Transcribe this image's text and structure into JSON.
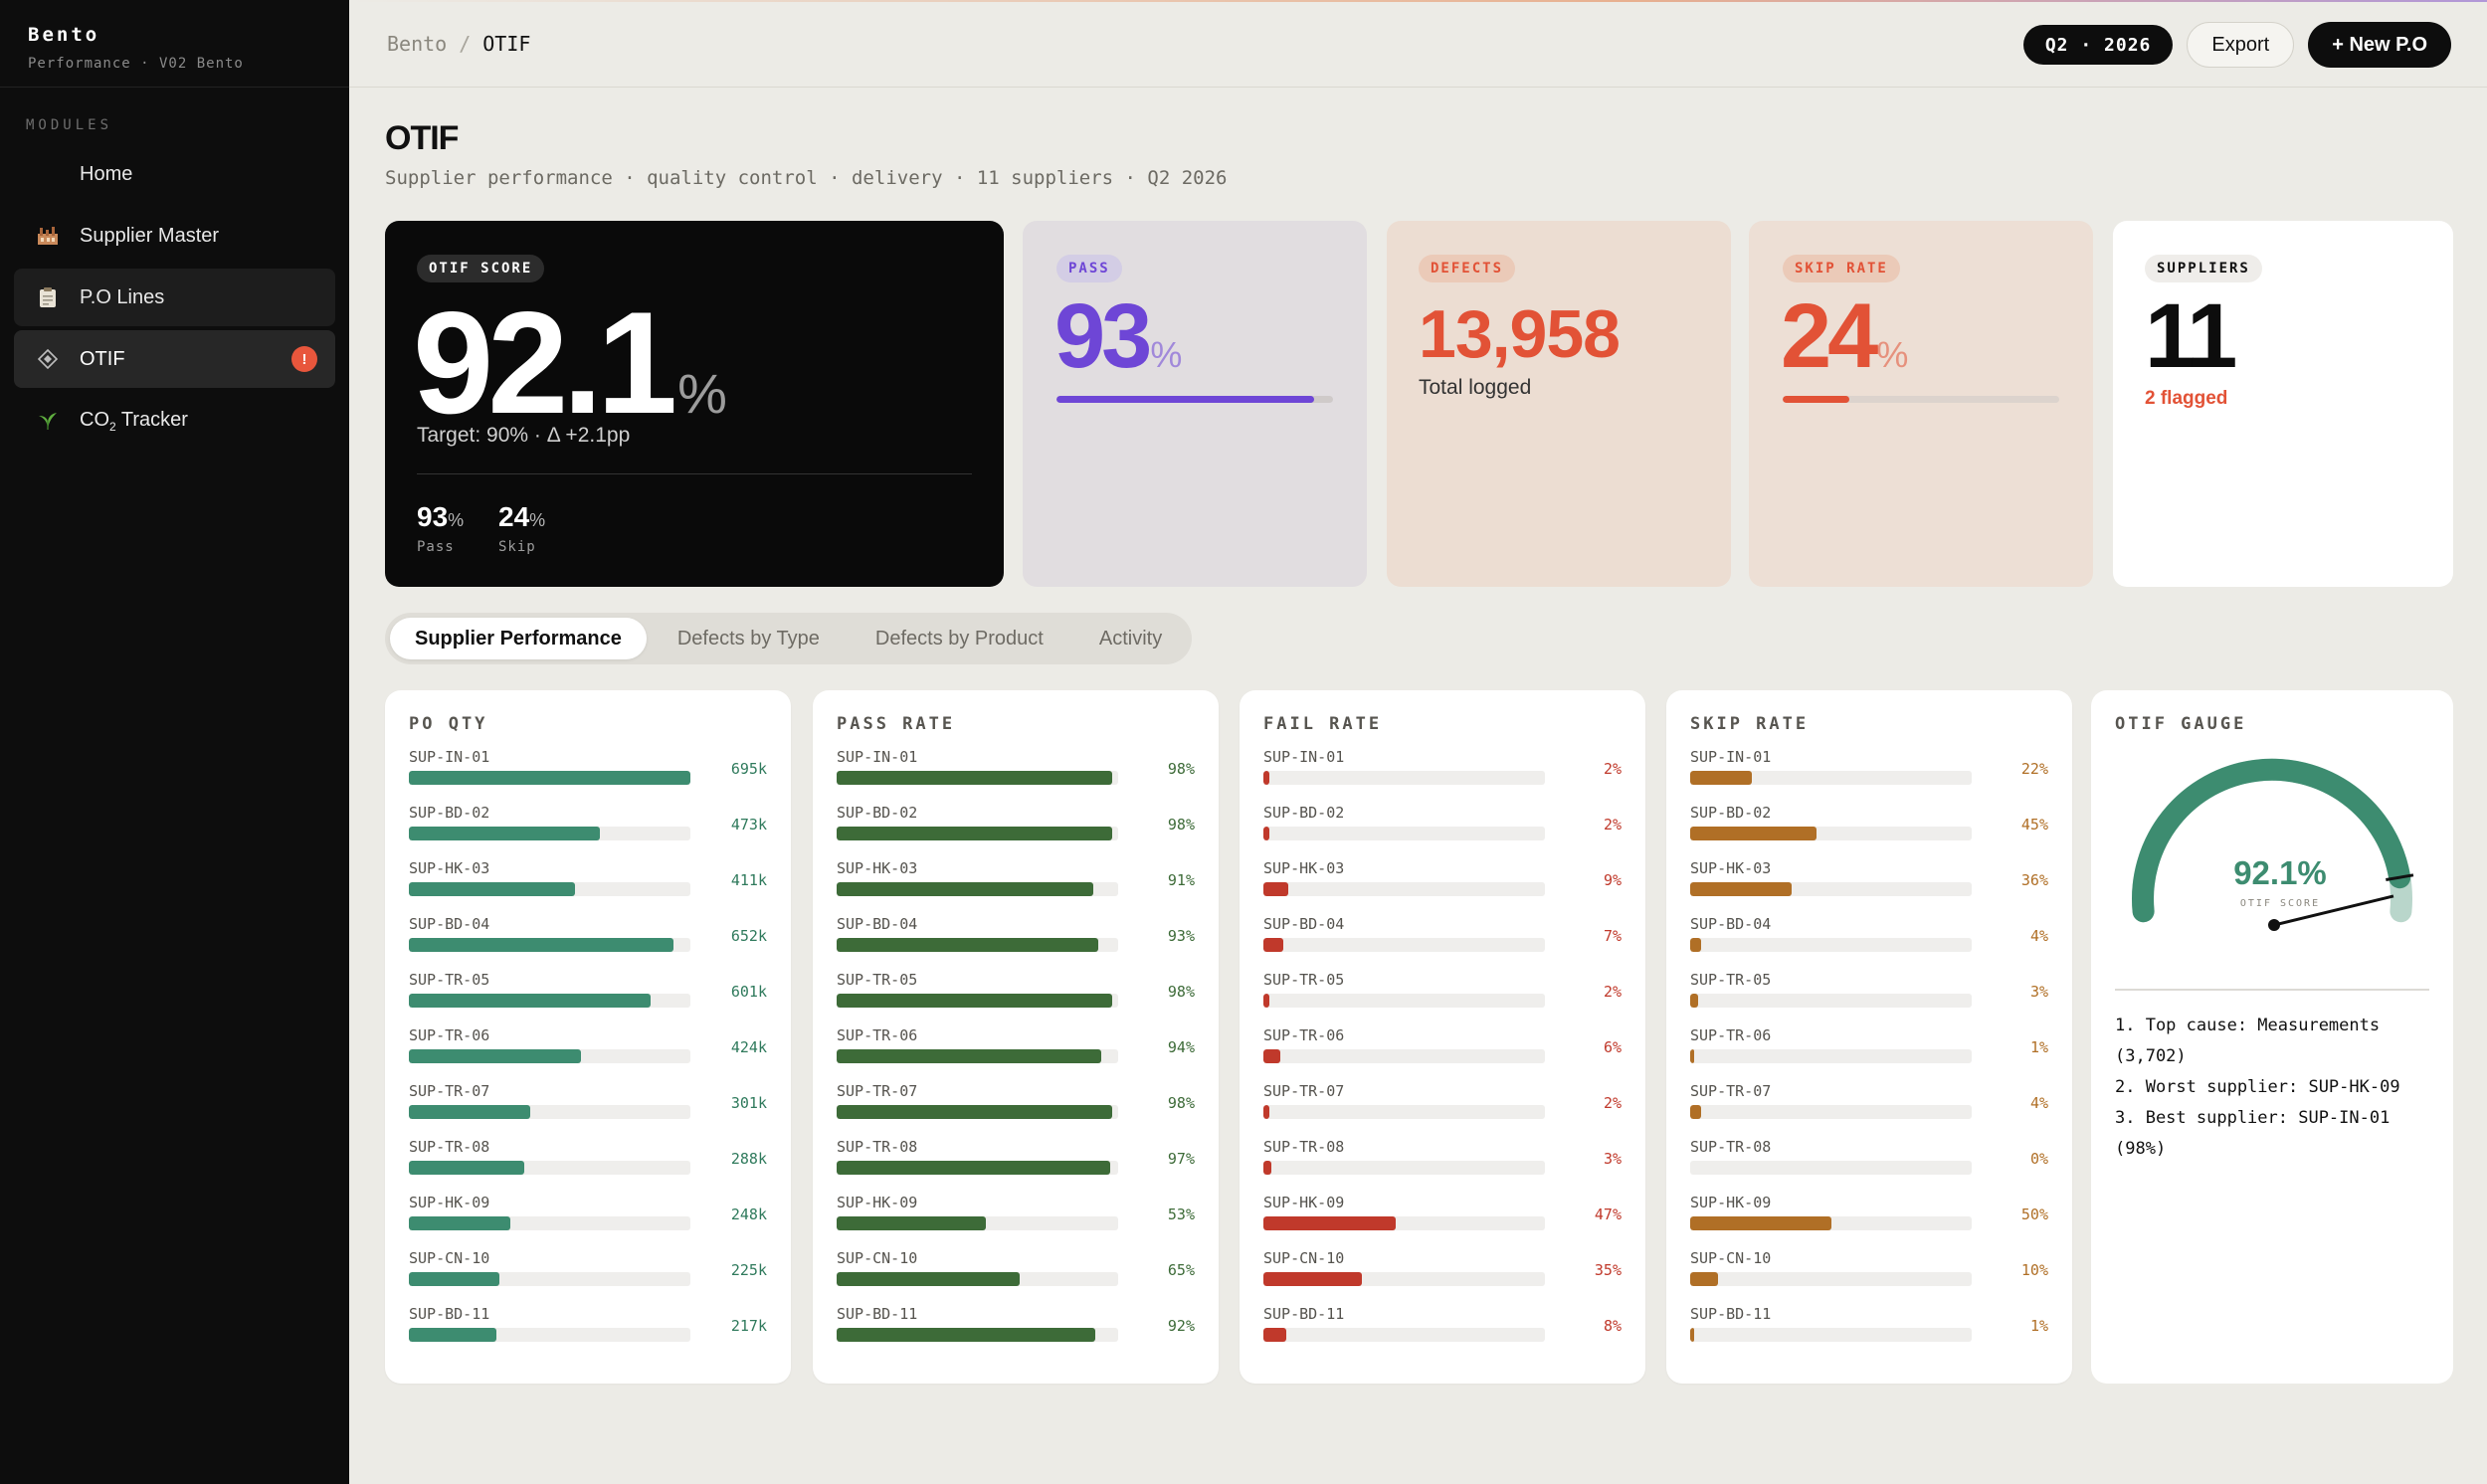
{
  "app": {
    "name": "Bento",
    "subtitle": "Performance · V02 Bento"
  },
  "sidebar": {
    "section_label": "MODULES",
    "items": [
      {
        "label": "Home",
        "icon": "none"
      },
      {
        "label": "Supplier Master",
        "icon": "factory-icon"
      },
      {
        "label": "P.O Lines",
        "icon": "clipboard-icon"
      },
      {
        "label": "OTIF",
        "icon": "diamond-icon",
        "badge": "!"
      },
      {
        "label": "CO",
        "label_sub": "2",
        "label_suffix": " Tracker",
        "icon": "leaf-icon"
      }
    ]
  },
  "breadcrumb": {
    "root": "Bento",
    "separator": "/",
    "current": "OTIF"
  },
  "toolbar": {
    "period": "Q2 · 2026",
    "export_label": "Export",
    "new_label": "+ New P.O"
  },
  "header": {
    "title": "OTIF",
    "subtitle": "Supplier performance · quality control · delivery · 11 suppliers · Q2 2026"
  },
  "kpis": {
    "otif": {
      "tag": "OTIF SCORE",
      "value": "92.1",
      "unit": "%",
      "target": "Target: 90% · Δ +2.1pp",
      "pass_value": "93",
      "pass_unit": "%",
      "pass_label": "Pass",
      "skip_value": "24",
      "skip_unit": "%",
      "skip_label": "Skip"
    },
    "pass": {
      "tag": "PASS",
      "value": "93",
      "unit": "%",
      "progress": 0.93,
      "color": "#6e46d6",
      "track": "#cfcac9"
    },
    "defects": {
      "tag": "DEFECTS",
      "value": "13,958",
      "note": "Total logged",
      "color": "#e25236"
    },
    "skip": {
      "tag": "SKIP RATE",
      "value": "24",
      "unit": "%",
      "progress": 0.24,
      "color": "#e25236",
      "track": "#dcd3cd"
    },
    "suppliers": {
      "tag": "SUPPLIERS",
      "value": "11",
      "flagged": "2 flagged"
    }
  },
  "tabs": [
    "Supplier Performance",
    "Defects by Type",
    "Defects by Product",
    "Activity"
  ],
  "panels": [
    {
      "title": "PO QTY",
      "color": "#3d8c70",
      "value_color": "#2f7a5c",
      "rows": [
        {
          "code": "SUP-IN-01",
          "value": "695k",
          "fraction": 1.0
        },
        {
          "code": "SUP-BD-02",
          "value": "473k",
          "fraction": 0.68
        },
        {
          "code": "SUP-HK-03",
          "value": "411k",
          "fraction": 0.59
        },
        {
          "code": "SUP-BD-04",
          "value": "652k",
          "fraction": 0.94
        },
        {
          "code": "SUP-TR-05",
          "value": "601k",
          "fraction": 0.86
        },
        {
          "code": "SUP-TR-06",
          "value": "424k",
          "fraction": 0.61
        },
        {
          "code": "SUP-TR-07",
          "value": "301k",
          "fraction": 0.43
        },
        {
          "code": "SUP-TR-08",
          "value": "288k",
          "fraction": 0.41
        },
        {
          "code": "SUP-HK-09",
          "value": "248k",
          "fraction": 0.36
        },
        {
          "code": "SUP-CN-10",
          "value": "225k",
          "fraction": 0.32
        },
        {
          "code": "SUP-BD-11",
          "value": "217k",
          "fraction": 0.31
        }
      ]
    },
    {
      "title": "PASS RATE",
      "color": "#3d6b38",
      "value_color": "#3d6b38",
      "rows": [
        {
          "code": "SUP-IN-01",
          "value": "98%",
          "fraction": 0.98
        },
        {
          "code": "SUP-BD-02",
          "value": "98%",
          "fraction": 0.98
        },
        {
          "code": "SUP-HK-03",
          "value": "91%",
          "fraction": 0.91
        },
        {
          "code": "SUP-BD-04",
          "value": "93%",
          "fraction": 0.93
        },
        {
          "code": "SUP-TR-05",
          "value": "98%",
          "fraction": 0.98
        },
        {
          "code": "SUP-TR-06",
          "value": "94%",
          "fraction": 0.94
        },
        {
          "code": "SUP-TR-07",
          "value": "98%",
          "fraction": 0.98
        },
        {
          "code": "SUP-TR-08",
          "value": "97%",
          "fraction": 0.97
        },
        {
          "code": "SUP-HK-09",
          "value": "53%",
          "fraction": 0.53
        },
        {
          "code": "SUP-CN-10",
          "value": "65%",
          "fraction": 0.65
        },
        {
          "code": "SUP-BD-11",
          "value": "92%",
          "fraction": 0.92
        }
      ]
    },
    {
      "title": "FAIL RATE",
      "color": "#c0392b",
      "value_color": "#c0392b",
      "rows": [
        {
          "code": "SUP-IN-01",
          "value": "2%",
          "fraction": 0.02
        },
        {
          "code": "SUP-BD-02",
          "value": "2%",
          "fraction": 0.02
        },
        {
          "code": "SUP-HK-03",
          "value": "9%",
          "fraction": 0.09
        },
        {
          "code": "SUP-BD-04",
          "value": "7%",
          "fraction": 0.07
        },
        {
          "code": "SUP-TR-05",
          "value": "2%",
          "fraction": 0.02
        },
        {
          "code": "SUP-TR-06",
          "value": "6%",
          "fraction": 0.06
        },
        {
          "code": "SUP-TR-07",
          "value": "2%",
          "fraction": 0.02
        },
        {
          "code": "SUP-TR-08",
          "value": "3%",
          "fraction": 0.03
        },
        {
          "code": "SUP-HK-09",
          "value": "47%",
          "fraction": 0.47
        },
        {
          "code": "SUP-CN-10",
          "value": "35%",
          "fraction": 0.35
        },
        {
          "code": "SUP-BD-11",
          "value": "8%",
          "fraction": 0.08
        }
      ]
    },
    {
      "title": "SKIP RATE",
      "color": "#b06f26",
      "value_color": "#b06f26",
      "rows": [
        {
          "code": "SUP-IN-01",
          "value": "22%",
          "fraction": 0.22
        },
        {
          "code": "SUP-BD-02",
          "value": "45%",
          "fraction": 0.45
        },
        {
          "code": "SUP-HK-03",
          "value": "36%",
          "fraction": 0.36
        },
        {
          "code": "SUP-BD-04",
          "value": "4%",
          "fraction": 0.04
        },
        {
          "code": "SUP-TR-05",
          "value": "3%",
          "fraction": 0.03
        },
        {
          "code": "SUP-TR-06",
          "value": "1%",
          "fraction": 0.01
        },
        {
          "code": "SUP-TR-07",
          "value": "4%",
          "fraction": 0.04
        },
        {
          "code": "SUP-TR-08",
          "value": "0%",
          "fraction": 0.0
        },
        {
          "code": "SUP-HK-09",
          "value": "50%",
          "fraction": 0.5
        },
        {
          "code": "SUP-CN-10",
          "value": "10%",
          "fraction": 0.1
        },
        {
          "code": "SUP-BD-11",
          "value": "1%",
          "fraction": 0.01
        }
      ]
    }
  ],
  "gauge": {
    "title": "OTIF GAUGE",
    "value": "92.1%",
    "label": "OTIF SCORE",
    "fraction": 0.921,
    "color": "#3d8c70",
    "remainder_color": "#b9d6cb",
    "insights": [
      "1. Top cause: Measurements (3,702)",
      "2. Worst supplier: SUP-HK-09",
      "3. Best supplier: SUP-IN-01 (98%)"
    ]
  },
  "colors": {
    "accent_dark": "#0d0d0d",
    "alert": "#e8563c"
  }
}
